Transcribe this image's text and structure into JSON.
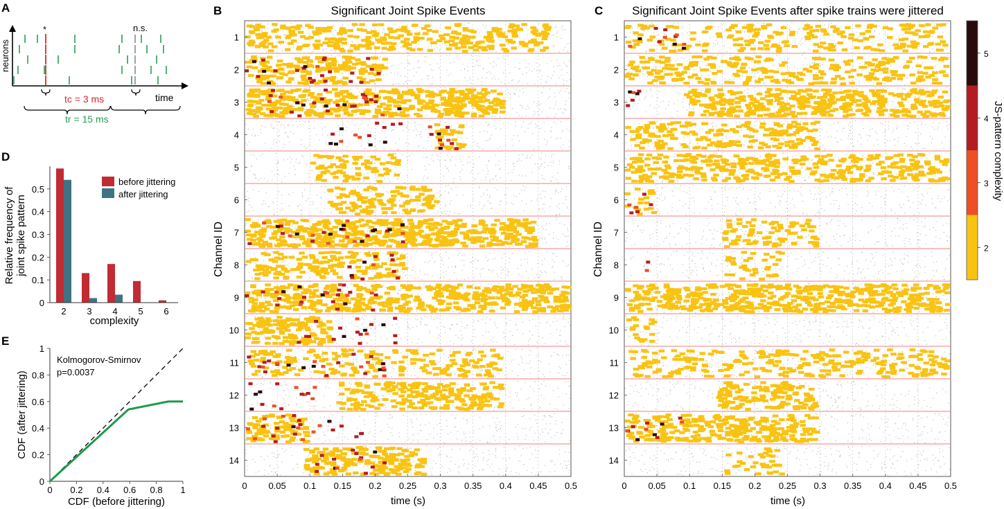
{
  "panel_letters": {
    "a": "A",
    "b": "B",
    "c": "C",
    "d": "D",
    "e": "E"
  },
  "colors": {
    "complexity_2": "#f9c312",
    "complexity_3": "#ee4f24",
    "complexity_4": "#b31c22",
    "complexity_5": "#2a0b0b",
    "separator": "#f07e7e",
    "background_spike": "#888888",
    "before_bar": "#c22b33",
    "after_bar": "#3f7382",
    "cdf_line": "#1e9a4a",
    "schematic_green": "#2f9a52",
    "schematic_red": "#e0242b",
    "schematic_gray": "#8a8a8a"
  },
  "panel_a": {
    "star": "*",
    "ns": "n.s.",
    "ylabel": "neurons",
    "xlabel": "time",
    "tc_label": "tc = 3 ms",
    "tr_label": "tr = 15 ms"
  },
  "chart_data": [
    {
      "id": "panel-b",
      "type": "scatter",
      "title": "Significant Joint Spike Events",
      "xlabel": "time (s)",
      "ylabel": "Channel ID",
      "xlim": [
        0,
        0.5
      ],
      "x_ticks": [
        "0",
        "0.05",
        "0.1",
        "0.15",
        "0.2",
        "0.25",
        "0.3",
        "0.35",
        "0.4",
        "0.45",
        "0.5"
      ],
      "channels": [
        "1",
        "2",
        "3",
        "4",
        "5",
        "6",
        "7",
        "8",
        "9",
        "10",
        "11",
        "12",
        "13",
        "14"
      ],
      "event_regions": [
        {
          "channel": 1,
          "start": 0.0,
          "end": 0.47,
          "density": 0.55
        },
        {
          "channel": 2,
          "start": 0.0,
          "end": 0.22,
          "density": 0.7
        },
        {
          "channel": 3,
          "start": 0.0,
          "end": 0.4,
          "density": 0.9
        },
        {
          "channel": 4,
          "start": 0.29,
          "end": 0.34,
          "density": 0.5
        },
        {
          "channel": 5,
          "start": 0.1,
          "end": 0.24,
          "density": 0.45
        },
        {
          "channel": 6,
          "start": 0.12,
          "end": 0.3,
          "density": 0.55
        },
        {
          "channel": 7,
          "start": 0.0,
          "end": 0.45,
          "density": 0.95
        },
        {
          "channel": 8,
          "start": 0.0,
          "end": 0.25,
          "density": 0.55
        },
        {
          "channel": 9,
          "start": 0.0,
          "end": 0.5,
          "density": 0.8
        },
        {
          "channel": 10,
          "start": 0.0,
          "end": 0.14,
          "density": 0.85
        },
        {
          "channel": 11,
          "start": 0.0,
          "end": 0.4,
          "density": 0.4
        },
        {
          "channel": 12,
          "start": 0.14,
          "end": 0.4,
          "density": 0.7
        },
        {
          "channel": 13,
          "start": 0.0,
          "end": 0.1,
          "density": 0.75
        },
        {
          "channel": 14,
          "start": 0.09,
          "end": 0.28,
          "density": 0.8
        }
      ],
      "high_complexity_regions": [
        {
          "channel": 2,
          "start": 0.0,
          "end": 0.22
        },
        {
          "channel": 3,
          "start": 0.0,
          "end": 0.25
        },
        {
          "channel": 4,
          "start": 0.12,
          "end": 0.33
        },
        {
          "channel": 7,
          "start": 0.0,
          "end": 0.25
        },
        {
          "channel": 8,
          "start": 0.15,
          "end": 0.25
        },
        {
          "channel": 9,
          "start": 0.0,
          "end": 0.22
        },
        {
          "channel": 10,
          "start": 0.08,
          "end": 0.24
        },
        {
          "channel": 11,
          "start": 0.0,
          "end": 0.22
        },
        {
          "channel": 12,
          "start": 0.0,
          "end": 0.12
        },
        {
          "channel": 13,
          "start": 0.0,
          "end": 0.2
        },
        {
          "channel": 14,
          "start": 0.1,
          "end": 0.22
        }
      ]
    },
    {
      "id": "panel-c",
      "type": "scatter",
      "title": "Significant Joint Spike Events after spike trains were jittered",
      "xlabel": "time (s)",
      "ylabel": "Channel ID",
      "xlim": [
        0,
        0.5
      ],
      "x_ticks": [
        "0",
        "0.05",
        "0.1",
        "0.15",
        "0.2",
        "0.25",
        "0.3",
        "0.35",
        "0.4",
        "0.45",
        "0.5"
      ],
      "channels": [
        "1",
        "2",
        "3",
        "4",
        "5",
        "6",
        "7",
        "8",
        "9",
        "10",
        "11",
        "12",
        "13",
        "14"
      ],
      "event_regions": [
        {
          "channel": 1,
          "start": 0.0,
          "end": 0.5,
          "density": 0.35
        },
        {
          "channel": 2,
          "start": 0.0,
          "end": 0.5,
          "density": 0.45
        },
        {
          "channel": 3,
          "start": 0.09,
          "end": 0.5,
          "density": 0.8
        },
        {
          "channel": 4,
          "start": 0.0,
          "end": 0.3,
          "density": 0.5
        },
        {
          "channel": 5,
          "start": 0.0,
          "end": 0.5,
          "density": 0.6
        },
        {
          "channel": 6,
          "start": 0.0,
          "end": 0.05,
          "density": 0.3
        },
        {
          "channel": 7,
          "start": 0.15,
          "end": 0.3,
          "density": 0.45
        },
        {
          "channel": 8,
          "start": 0.15,
          "end": 0.25,
          "density": 0.3
        },
        {
          "channel": 9,
          "start": 0.0,
          "end": 0.5,
          "density": 0.85
        },
        {
          "channel": 10,
          "start": 0.0,
          "end": 0.05,
          "density": 0.3
        },
        {
          "channel": 11,
          "start": 0.0,
          "end": 0.5,
          "density": 0.45
        },
        {
          "channel": 12,
          "start": 0.14,
          "end": 0.3,
          "density": 0.75
        },
        {
          "channel": 13,
          "start": 0.0,
          "end": 0.3,
          "density": 0.8
        },
        {
          "channel": 14,
          "start": 0.15,
          "end": 0.25,
          "density": 0.3
        }
      ],
      "high_complexity_regions": [
        {
          "channel": 1,
          "start": 0.0,
          "end": 0.1
        },
        {
          "channel": 3,
          "start": 0.0,
          "end": 0.05
        },
        {
          "channel": 6,
          "start": 0.0,
          "end": 0.05
        },
        {
          "channel": 8,
          "start": 0.03,
          "end": 0.04
        },
        {
          "channel": 13,
          "start": 0.0,
          "end": 0.1
        }
      ]
    },
    {
      "id": "panel-d",
      "type": "bar",
      "title": "",
      "xlabel": "complexity",
      "ylabel": "Relative frequency of joint spike pattern",
      "ylabel_lines": [
        "Relative frequency of",
        "joint spike pattern"
      ],
      "categories": [
        "2",
        "3",
        "4",
        "5",
        "6"
      ],
      "series": [
        {
          "name": "before jittering",
          "values": [
            0.59,
            0.13,
            0.17,
            0.095,
            0.01
          ]
        },
        {
          "name": "after jittering",
          "values": [
            0.54,
            0.02,
            0.035,
            0.0,
            0.0
          ]
        }
      ],
      "ylim": [
        0,
        0.6
      ],
      "y_ticks": [
        "0",
        "0.1",
        "0.2",
        "0.3",
        "0.4",
        "0.5"
      ],
      "legend_position": "top-right"
    },
    {
      "id": "panel-e",
      "type": "line",
      "title": "",
      "xlabel": "CDF (before jittering)",
      "ylabel": "CDF (after jittering)",
      "xlim": [
        0,
        1
      ],
      "ylim": [
        0,
        1
      ],
      "x_ticks": [
        "0",
        "0.2",
        "0.4",
        "0.6",
        "0.8",
        "1"
      ],
      "y_ticks": [
        "0",
        "0.2",
        "0.4",
        "0.6",
        "0.8",
        "1"
      ],
      "series": [
        {
          "name": "CDF",
          "x": [
            0,
            0.59,
            0.89,
            1.0
          ],
          "y": [
            0,
            0.54,
            0.6,
            0.6
          ]
        },
        {
          "name": "diagonal",
          "x": [
            0,
            1
          ],
          "y": [
            0,
            1
          ]
        }
      ],
      "annotation": [
        "Kolmogorov-Smirnov",
        "p=0.0037"
      ]
    },
    {
      "id": "colorbar",
      "type": "heatmap",
      "title": "",
      "label": "JS-pattern complexity",
      "ticks": [
        "2",
        "3",
        "4",
        "5"
      ]
    }
  ]
}
